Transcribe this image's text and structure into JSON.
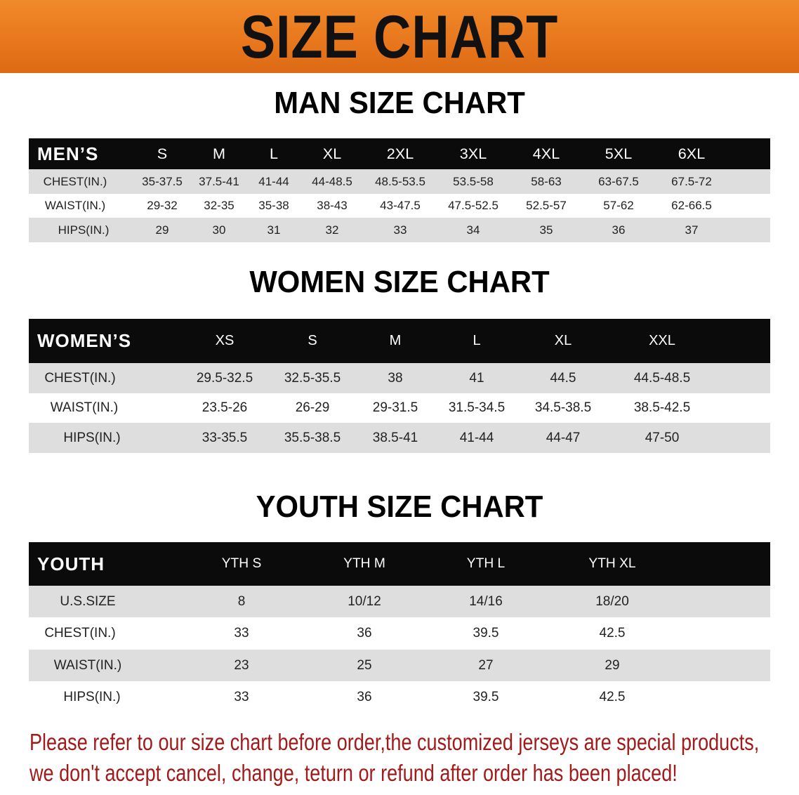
{
  "banner_title": "SIZE CHART",
  "colors": {
    "banner": "#e8761c",
    "header_band": "#0b0b0b",
    "stripe": "#dededf",
    "note": "#a31a1a"
  },
  "men": {
    "title": "MAN SIZE CHART",
    "header_label": "MEN’S",
    "sizes": [
      "S",
      "M",
      "L",
      "XL",
      "2XL",
      "3XL",
      "4XL",
      "5XL",
      "6XL"
    ],
    "rows": [
      {
        "label": "CHEST(IN.)",
        "values": [
          "35-37.5",
          "37.5-41",
          "41-44",
          "44-48.5",
          "48.5-53.5",
          "53.5-58",
          "58-63",
          "63-67.5",
          "67.5-72"
        ]
      },
      {
        "label": "WAIST(IN.)",
        "values": [
          "29-32",
          "32-35",
          "35-38",
          "38-43",
          "43-47.5",
          "47.5-52.5",
          "52.5-57",
          "57-62",
          "62-66.5"
        ]
      },
      {
        "label": "HIPS(IN.)",
        "values": [
          "29",
          "30",
          "31",
          "32",
          "33",
          "34",
          "35",
          "36",
          "37"
        ]
      }
    ]
  },
  "women": {
    "title": "WOMEN SIZE CHART",
    "header_label": "WOMEN’S",
    "sizes": [
      "XS",
      "S",
      "M",
      "L",
      "XL",
      "XXL"
    ],
    "rows": [
      {
        "label": "CHEST(IN.)",
        "values": [
          "29.5-32.5",
          "32.5-35.5",
          "38",
          "41",
          "44.5",
          "44.5-48.5"
        ]
      },
      {
        "label": "WAIST(IN.)",
        "values": [
          "23.5-26",
          "26-29",
          "29-31.5",
          "31.5-34.5",
          "34.5-38.5",
          "38.5-42.5"
        ]
      },
      {
        "label": "HIPS(IN.)",
        "values": [
          "33-35.5",
          "35.5-38.5",
          "38.5-41",
          "41-44",
          "44-47",
          "47-50"
        ]
      }
    ]
  },
  "youth": {
    "title": "YOUTH SIZE CHART",
    "header_label": "YOUTH",
    "sizes": [
      "YTH S",
      "YTH M",
      "YTH L",
      "YTH XL"
    ],
    "rows": [
      {
        "label": "U.S.SIZE",
        "values": [
          "8",
          "10/12",
          "14/16",
          "18/20"
        ]
      },
      {
        "label": "CHEST(IN.)",
        "values": [
          "33",
          "36",
          "39.5",
          "42.5"
        ]
      },
      {
        "label": "WAIST(IN.)",
        "values": [
          "23",
          "25",
          "27",
          "29"
        ]
      },
      {
        "label": "HIPS(IN.)",
        "values": [
          "33",
          "36",
          "39.5",
          "42.5"
        ]
      }
    ]
  },
  "notice": {
    "line1": "Please refer to our size chart before order,the customized jerseys are special products,",
    "line2": "we don't accept cancel, change, teturn or refund after order has been placed!"
  }
}
